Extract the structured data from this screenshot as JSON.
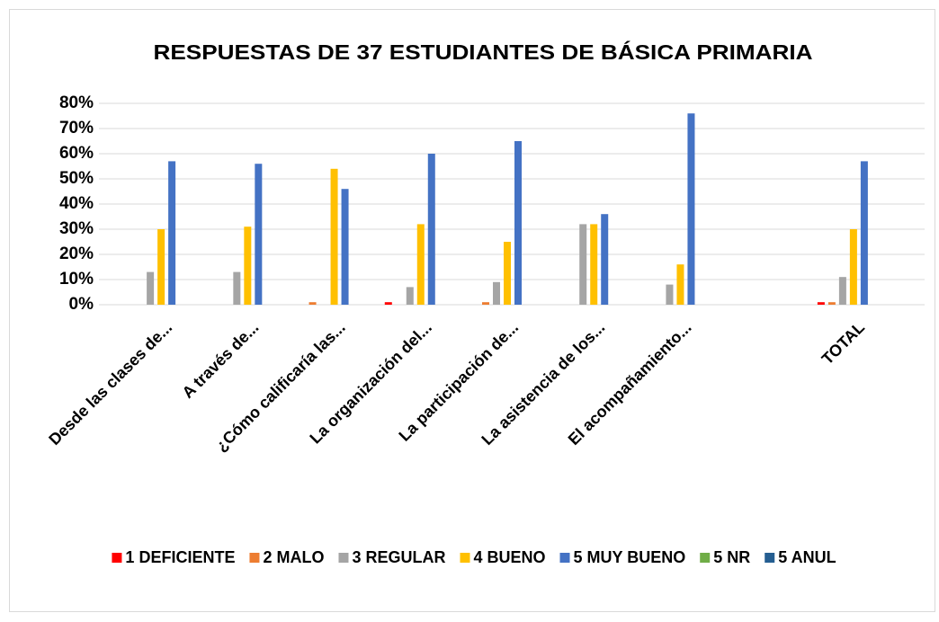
{
  "chart_data": {
    "type": "bar",
    "title": "RESPUESTAS DE 37 ESTUDIANTES DE BÁSICA PRIMARIA",
    "categories": [
      "Desde las clases de...",
      "A través de...",
      "¿Cómo calificaría las...",
      "La organización del...",
      "La participación de...",
      "La asistencia de los...",
      "El acompañamiento...",
      null,
      "TOTAL"
    ],
    "series": [
      {
        "name": "1 DEFICIENTE",
        "color": "#ff0000",
        "values": [
          0,
          0,
          0,
          1,
          0,
          0,
          0,
          0,
          1
        ]
      },
      {
        "name": "2 MALO",
        "color": "#ed7d31",
        "values": [
          0,
          0,
          1,
          0,
          1,
          0,
          0,
          0,
          1
        ]
      },
      {
        "name": "3 REGULAR",
        "color": "#a5a5a5",
        "values": [
          13,
          13,
          0,
          7,
          9,
          32,
          8,
          0,
          11
        ]
      },
      {
        "name": "4 BUENO",
        "color": "#ffc000",
        "values": [
          30,
          31,
          54,
          32,
          25,
          32,
          16,
          0,
          30
        ]
      },
      {
        "name": "5 MUY BUENO",
        "color": "#4472c4",
        "values": [
          57,
          56,
          46,
          60,
          65,
          36,
          76,
          0,
          57
        ]
      },
      {
        "name": "5 NR",
        "color": "#70ad47",
        "values": [
          0,
          0,
          0,
          0,
          0,
          0,
          0,
          0,
          0
        ]
      },
      {
        "name": "5 ANUL",
        "color": "#255e91",
        "values": [
          0,
          0,
          0,
          0,
          0,
          0,
          0,
          0,
          0
        ]
      }
    ],
    "ylim": [
      0,
      80
    ],
    "yticks": [
      {
        "value": 0,
        "label": "0%"
      },
      {
        "value": 10,
        "label": "10%"
      },
      {
        "value": 20,
        "label": "20%"
      },
      {
        "value": 30,
        "label": "30%"
      },
      {
        "value": 40,
        "label": "40%"
      },
      {
        "value": 50,
        "label": "50%"
      },
      {
        "value": 60,
        "label": "60%"
      },
      {
        "value": 70,
        "label": "70%"
      },
      {
        "value": 80,
        "label": "80%"
      }
    ],
    "grid": true,
    "legend": "bottom"
  }
}
